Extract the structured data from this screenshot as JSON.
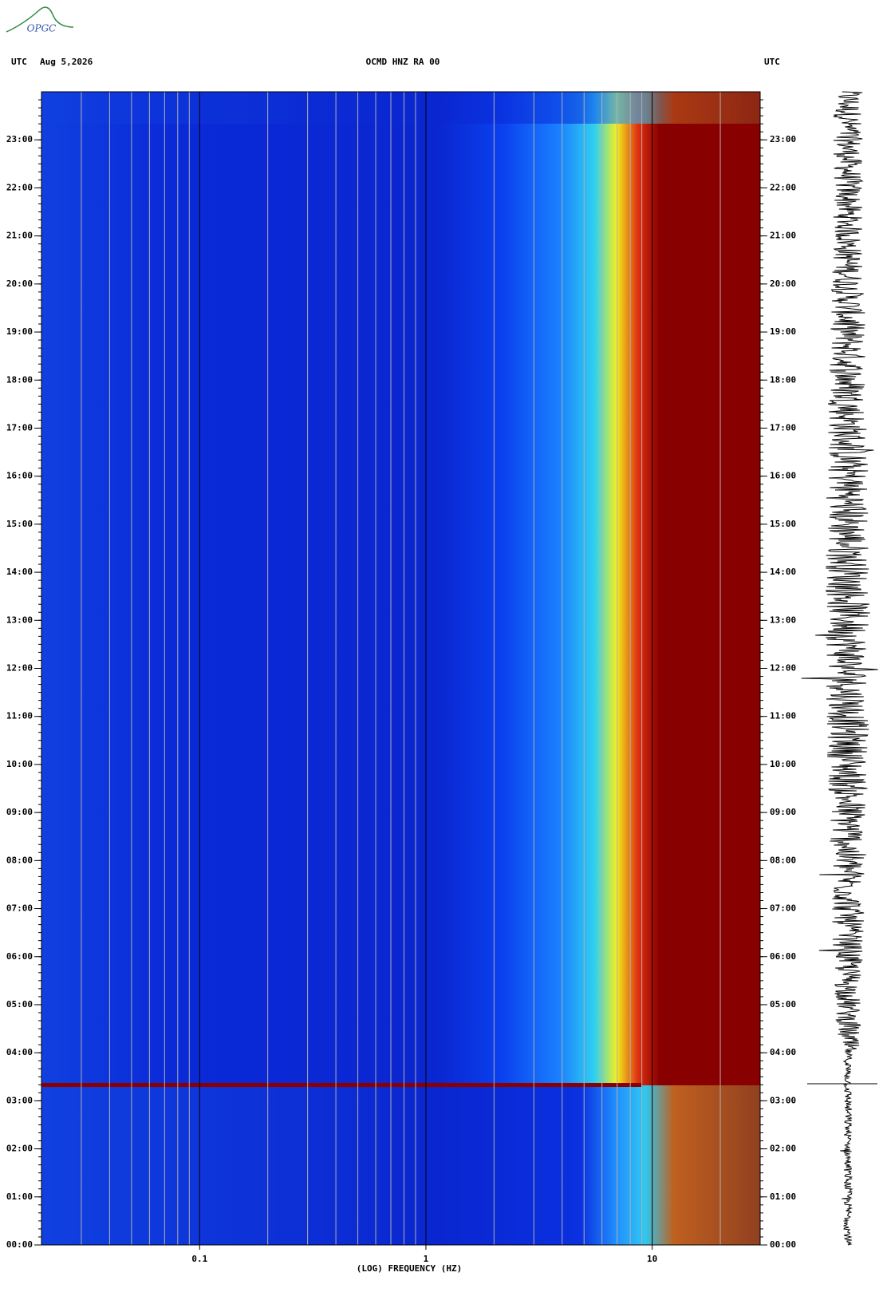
{
  "logo": "OPGC",
  "chart_data": {
    "type": "spectrogram",
    "title": "OCMD HNZ RA 00",
    "date": "Aug 5,2026",
    "time_zone": "UTC",
    "x_label": "(LOG) FREQUENCY (HZ)",
    "x_log": true,
    "xlim": [
      0.02,
      30
    ],
    "xticks": [
      0.1,
      1,
      10
    ],
    "ylim": [
      0,
      24
    ],
    "yticks": [
      {
        "value": 0,
        "label": "00:00"
      },
      {
        "value": 1,
        "label": "01:00"
      },
      {
        "value": 2,
        "label": "02:00"
      },
      {
        "value": 3,
        "label": "03:00"
      },
      {
        "value": 4,
        "label": "04:00"
      },
      {
        "value": 5,
        "label": "05:00"
      },
      {
        "value": 6,
        "label": "06:00"
      },
      {
        "value": 7,
        "label": "07:00"
      },
      {
        "value": 8,
        "label": "08:00"
      },
      {
        "value": 9,
        "label": "09:00"
      },
      {
        "value": 10,
        "label": "10:00"
      },
      {
        "value": 11,
        "label": "11:00"
      },
      {
        "value": 12,
        "label": "12:00"
      },
      {
        "value": 13,
        "label": "13:00"
      },
      {
        "value": 14,
        "label": "14:00"
      },
      {
        "value": 15,
        "label": "15:00"
      },
      {
        "value": 16,
        "label": "16:00"
      },
      {
        "value": 17,
        "label": "17:00"
      },
      {
        "value": 18,
        "label": "18:00"
      },
      {
        "value": 19,
        "label": "19:00"
      },
      {
        "value": 20,
        "label": "20:00"
      },
      {
        "value": 21,
        "label": "21:00"
      },
      {
        "value": 22,
        "label": "22:00"
      },
      {
        "value": 23,
        "label": "23:00"
      }
    ],
    "grid": true
  }
}
